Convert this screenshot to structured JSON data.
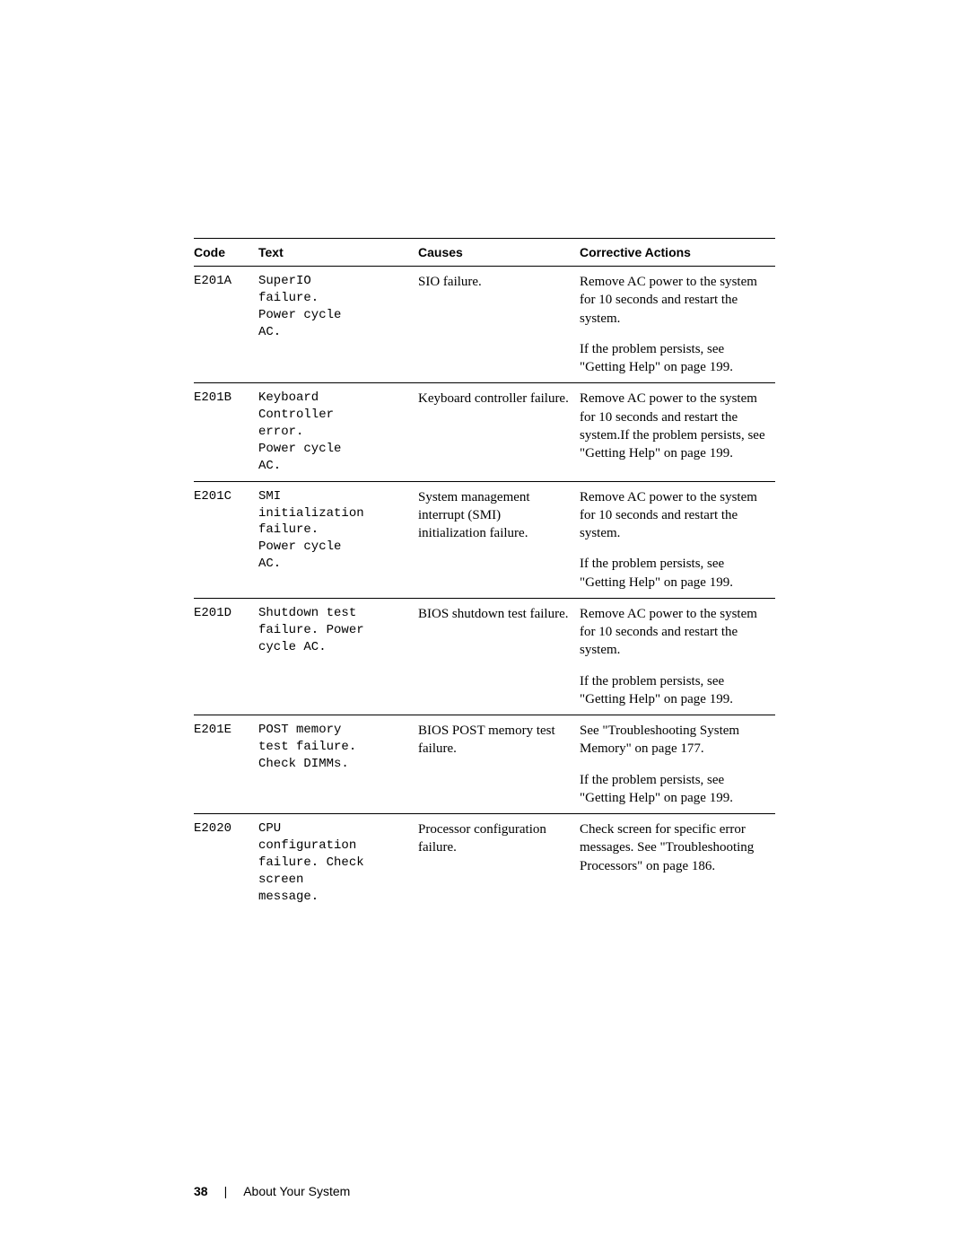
{
  "table": {
    "headers": {
      "code": "Code",
      "text": "Text",
      "causes": "Causes",
      "actions": "Corrective Actions"
    },
    "rows": [
      {
        "code": "E201A",
        "text": "SuperIO\nfailure.\nPower cycle\nAC.",
        "causes": "SIO failure.",
        "actions": [
          "Remove AC power to the system for 10 seconds and restart the system.",
          "If the problem persists, see \"Getting Help\" on page 199."
        ]
      },
      {
        "code": "E201B",
        "text": "Keyboard\nController\nerror.\nPower cycle\nAC.",
        "causes": "Keyboard controller failure.",
        "actions": [
          "Remove AC power to the system for 10 seconds and restart the system.If the problem persists, see \"Getting Help\" on page 199."
        ]
      },
      {
        "code": "E201C",
        "text": "SMI\ninitialization\nfailure.\nPower cycle\nAC.",
        "causes": "System management interrupt (SMI) initialization failure.",
        "actions": [
          "Remove AC power to the system for 10 seconds and restart the system.",
          "If the problem persists, see \"Getting Help\" on page 199."
        ]
      },
      {
        "code": "E201D",
        "text": "Shutdown test\nfailure. Power\ncycle AC.",
        "causes": "BIOS shutdown test failure.",
        "actions": [
          "Remove AC power to the system for 10 seconds and restart the system.",
          "If the problem persists, see \"Getting Help\" on page 199."
        ]
      },
      {
        "code": "E201E",
        "text": "POST memory\ntest failure.\nCheck DIMMs.",
        "causes": "BIOS POST memory test failure.",
        "actions": [
          "See \"Troubleshooting System Memory\" on page 177.",
          "If the problem persists, see \"Getting Help\" on page 199."
        ]
      },
      {
        "code": "E2020",
        "text": "CPU\nconfiguration\nfailure. Check\nscreen\nmessage.",
        "causes": "Processor configuration failure.",
        "actions": [
          "Check screen for specific error messages. See \"Troubleshooting Processors\" on page 186."
        ]
      }
    ]
  },
  "footer": {
    "page_number": "38",
    "divider": "|",
    "section": "About Your System"
  }
}
